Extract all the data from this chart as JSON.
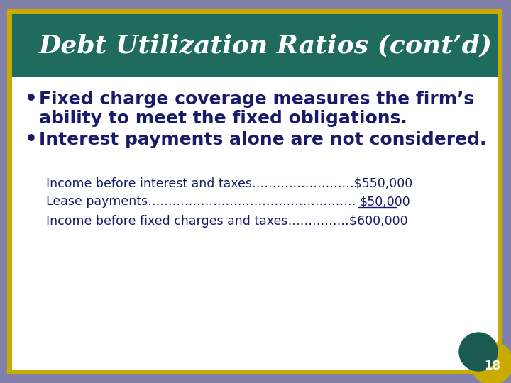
{
  "title": "Debt Utilization Ratios (cont’d)",
  "title_color": "#ffffff",
  "title_bg_color": "#1f6b5e",
  "slide_bg_color": "#8080a8",
  "content_bg_color": "#ffffff",
  "border_color": "#c8aa00",
  "bullet1_line1": "Fixed charge coverage measures the firm’s",
  "bullet1_line2": "ability to meet the fixed obligations.",
  "bullet2": "Interest payments alone are not considered.",
  "bullet_color": "#1a1a6b",
  "line1_text": "Income before interest and taxes…………………….$550,000",
  "line2_left": "Lease payments……………………………………………",
  "line2_right": "$50,000",
  "line3_text": "Income before fixed charges and taxes……………$600,000",
  "detail_color": "#1a1a6b",
  "page_number": "18",
  "page_bg_color": "#1a5a50",
  "page_text_color": "#ffffff",
  "gold_color": "#c8aa00"
}
